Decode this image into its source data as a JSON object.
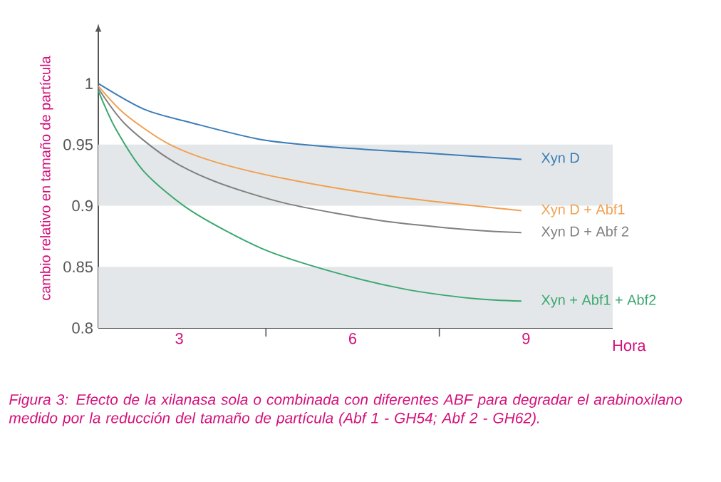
{
  "chart_data": {
    "type": "line",
    "xlabel": "Hora",
    "ylabel": "cambio relativo en tamaño de partícula",
    "xlim": [
      1.6,
      10.5
    ],
    "ylim": [
      0.8,
      1.045
    ],
    "xticks": [
      3,
      {
        "value": 4.5,
        "label": null
      },
      6,
      {
        "value": 7.5,
        "label": null
      },
      9
    ],
    "yticks": [
      0.8,
      0.85,
      0.9,
      0.95,
      1
    ],
    "grid": false,
    "legend": false,
    "bands": [
      {
        "axis": "y",
        "from": 0.8,
        "to": 0.85,
        "color": "#e4e7e9"
      },
      {
        "axis": "y",
        "from": 0.9,
        "to": 0.95,
        "color": "#e4e7e9"
      }
    ],
    "series": [
      {
        "name": "Xyn D",
        "color": "#3a7cb8",
        "x": [
          1.6,
          2.39,
          3.2,
          4.43,
          5.65,
          7.29,
          8.92
        ],
        "values": [
          1.0,
          0.979,
          0.968,
          0.954,
          0.948,
          0.943,
          0.938
        ]
      },
      {
        "name": "Xyn D + Abf1",
        "color": "#f0a050",
        "x": [
          1.6,
          2.06,
          2.8,
          3.61,
          4.84,
          6.47,
          8.1,
          8.92
        ],
        "values": [
          0.998,
          0.975,
          0.951,
          0.936,
          0.922,
          0.909,
          0.9,
          0.896
        ]
      },
      {
        "name": "Xyn D + Abf 2",
        "color": "#808080",
        "x": [
          1.6,
          2.06,
          2.8,
          3.61,
          4.84,
          6.47,
          8.1,
          8.92
        ],
        "values": [
          0.996,
          0.967,
          0.939,
          0.92,
          0.902,
          0.888,
          0.88,
          0.878
        ]
      },
      {
        "name": "Xyn + Abf1 + Abf2",
        "color": "#3aa870",
        "x": [
          1.6,
          1.9,
          2.39,
          3.2,
          4.43,
          5.65,
          6.88,
          8.1,
          8.92
        ],
        "values": [
          0.994,
          0.963,
          0.928,
          0.896,
          0.865,
          0.846,
          0.832,
          0.824,
          0.822
        ]
      }
    ],
    "annotations": [
      "Figura 3: Efecto de la xilanasa sola o combinada con diferentes ABF para degradar el arabinoxilano medido por la reducción del tamaño de partícula (Abf 1 - GH54; Abf 2 - GH62)."
    ]
  }
}
